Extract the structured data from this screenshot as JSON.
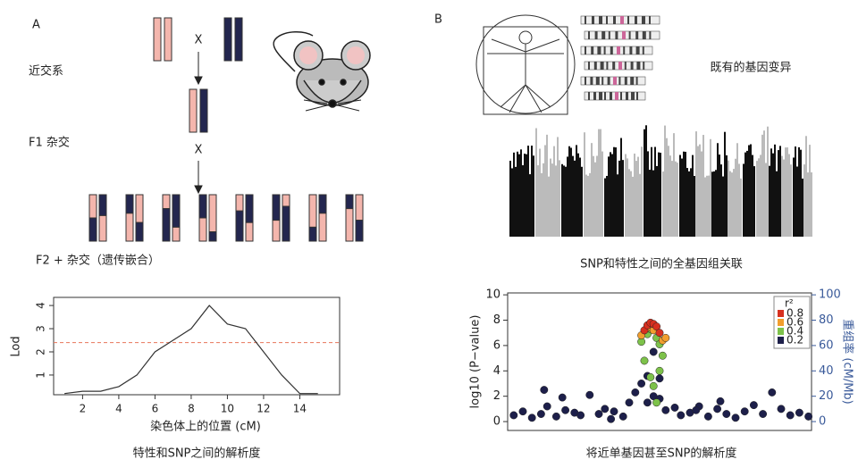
{
  "panel_a": {
    "label": "A",
    "cross_marker": "X",
    "inbred": "近交系",
    "f1": "F1 杂交",
    "f2": "F2 + 杂交（遗传嵌合）",
    "caption": "特性和SNP之间的解析度",
    "lod_plot": {
      "type": "line",
      "ylabel": "Lod",
      "xlabel": "染色体上的位置 (cM)",
      "x": [
        1,
        2,
        3,
        4,
        5,
        6,
        7,
        8,
        9,
        10,
        11,
        12,
        13,
        14,
        15
      ],
      "values": [
        0.2,
        0.3,
        0.3,
        0.5,
        1.0,
        2.0,
        2.5,
        3.0,
        4.0,
        3.2,
        3.0,
        2.0,
        1.0,
        0.2,
        0.2
      ],
      "color": "#333333",
      "threshold": 2.4,
      "threshold_color": "#e8765a",
      "xlim": [
        0.4,
        16.2
      ],
      "ylim": [
        0.15,
        4.35
      ],
      "xticks": [
        2,
        4,
        6,
        8,
        10,
        12,
        14
      ],
      "yticks": [
        1,
        2,
        3,
        4
      ]
    }
  },
  "panel_b": {
    "label": "B",
    "variants": "既有的基因变异",
    "gwas_caption": "SNP和特性之间的全基因组关联",
    "caption": "将近单基因甚至SNP的解析度",
    "locus_plot": {
      "type": "scatter",
      "ylabel": "log10 (P−value)",
      "y2label": "重组率 (cM/Mb)",
      "legend_title": "r²",
      "xlim": [
        0,
        100
      ],
      "ylim": [
        -0.7,
        10.15
      ],
      "yticks": [
        0,
        2,
        4,
        6,
        8,
        10
      ],
      "y2lim": [
        -7,
        101.5
      ],
      "y2ticks": [
        0,
        20,
        40,
        60,
        80,
        100
      ],
      "series": [
        {
          "name": "0.8",
          "color": "#d7301f",
          "x": [
            45,
            46,
            47,
            48,
            49,
            50
          ],
          "values": [
            7.2,
            7.6,
            7.8,
            7.7,
            7.5,
            7.0
          ]
        },
        {
          "name": "0.6",
          "color": "#f29e2e",
          "x": [
            44,
            46,
            48,
            51,
            52
          ],
          "values": [
            6.8,
            7.4,
            7.2,
            6.4,
            6.6
          ]
        },
        {
          "name": "0.4",
          "color": "#7dc24a",
          "x": [
            44,
            46,
            47,
            49,
            50,
            45,
            47,
            49,
            50,
            48,
            51
          ],
          "values": [
            6.3,
            6.9,
            7.3,
            6.6,
            6.1,
            4.8,
            3.5,
            1.5,
            4.0,
            2.8,
            5.2
          ]
        },
        {
          "name": "0.2",
          "color": "#1d1f4a",
          "x": [
            2,
            5,
            8,
            11,
            13,
            16,
            19,
            22,
            24,
            27,
            30,
            32,
            35,
            38,
            40,
            42,
            44,
            46,
            48,
            50,
            52,
            55,
            57,
            60,
            63,
            66,
            69,
            72,
            75,
            78,
            81,
            84,
            87,
            90,
            93,
            96,
            99,
            12,
            18,
            34,
            46,
            48,
            50,
            62,
            70
          ],
          "values": [
            0.5,
            0.8,
            0.3,
            0.6,
            1.2,
            0.4,
            0.9,
            0.7,
            0.5,
            2.1,
            0.6,
            1.0,
            0.8,
            0.4,
            1.5,
            2.3,
            3.0,
            1.5,
            2.0,
            1.8,
            0.9,
            1.1,
            0.5,
            0.7,
            1.2,
            0.4,
            1.0,
            0.6,
            0.3,
            0.8,
            1.3,
            0.6,
            2.3,
            1.0,
            0.5,
            0.7,
            0.4,
            2.5,
            1.9,
            0.2,
            3.6,
            5.5,
            3.4,
            0.9,
            1.6
          ]
        }
      ]
    }
  }
}
